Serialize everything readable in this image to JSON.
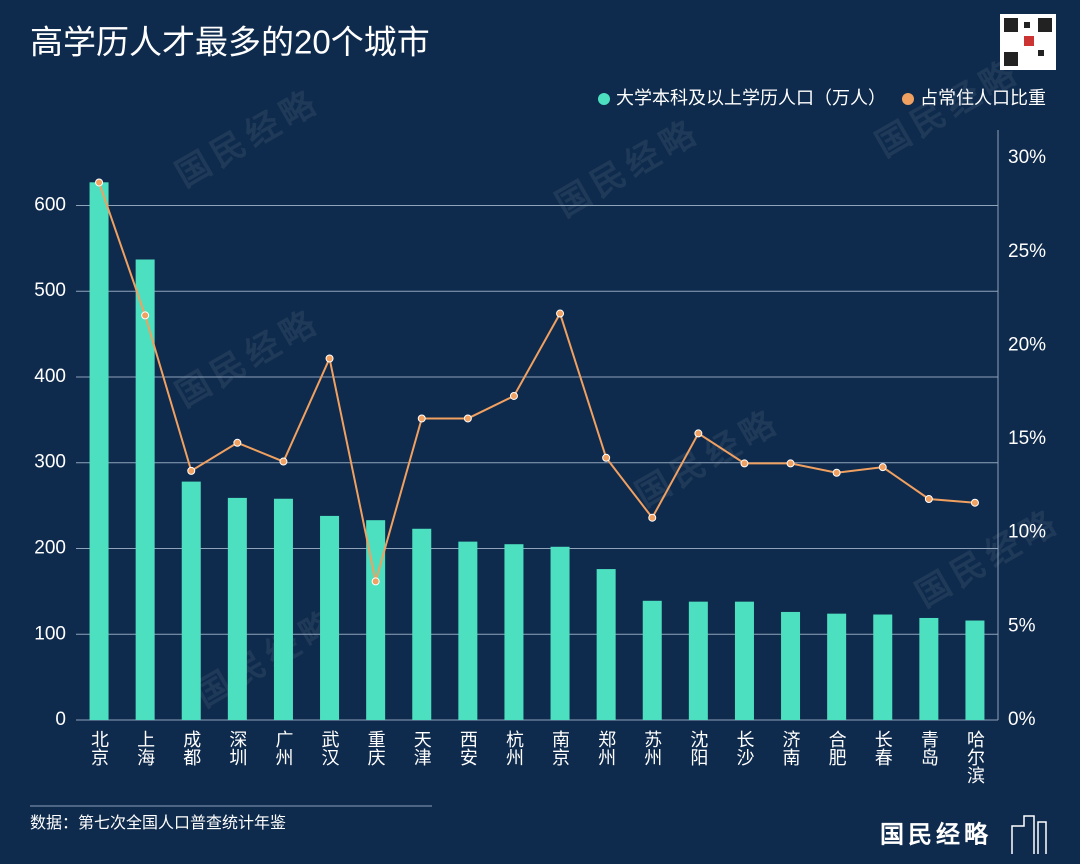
{
  "chart_data": {
    "type": "bar-line",
    "title": "高学历人才最多的20个城市",
    "source": "数据：第七次全国人口普查统计年鉴",
    "brand": "国民经略",
    "categories": [
      "北京",
      "上海",
      "成都",
      "深圳",
      "广州",
      "武汉",
      "重庆",
      "天津",
      "西安",
      "杭州",
      "南京",
      "郑州",
      "苏州",
      "沈阳",
      "长沙",
      "济南",
      "合肥",
      "长春",
      "青岛",
      "哈尔滨"
    ],
    "series": [
      {
        "name": "大学本科及以上学历人口（万人）",
        "color": "#4de0c0",
        "kind": "bar",
        "values": [
          627,
          537,
          278,
          259,
          258,
          238,
          233,
          223,
          208,
          205,
          202,
          176,
          139,
          138,
          138,
          126,
          124,
          123,
          119,
          116
        ]
      },
      {
        "name": "占常住人口比重",
        "color": "#f0a060",
        "kind": "line",
        "axis": "y2",
        "values": [
          28.7,
          21.6,
          13.3,
          14.8,
          13.8,
          19.3,
          7.4,
          16.1,
          16.1,
          17.3,
          21.7,
          14.0,
          10.8,
          15.3,
          13.7,
          13.7,
          13.2,
          13.5,
          11.8,
          11.6
        ]
      }
    ],
    "ylim": [
      0,
      688
    ],
    "yticks": [
      0,
      100,
      200,
      300,
      400,
      500,
      600
    ],
    "y2lim": [
      0,
      31.5
    ],
    "y2ticks": [
      {
        "value": 0,
        "label": "0%"
      },
      {
        "value": 5,
        "label": "5%"
      },
      {
        "value": 10,
        "label": "10%"
      },
      {
        "value": 15,
        "label": "15%"
      },
      {
        "value": 20,
        "label": "20%"
      },
      {
        "value": 25,
        "label": "25%"
      },
      {
        "value": 30,
        "label": "30%"
      }
    ],
    "grid": true
  }
}
